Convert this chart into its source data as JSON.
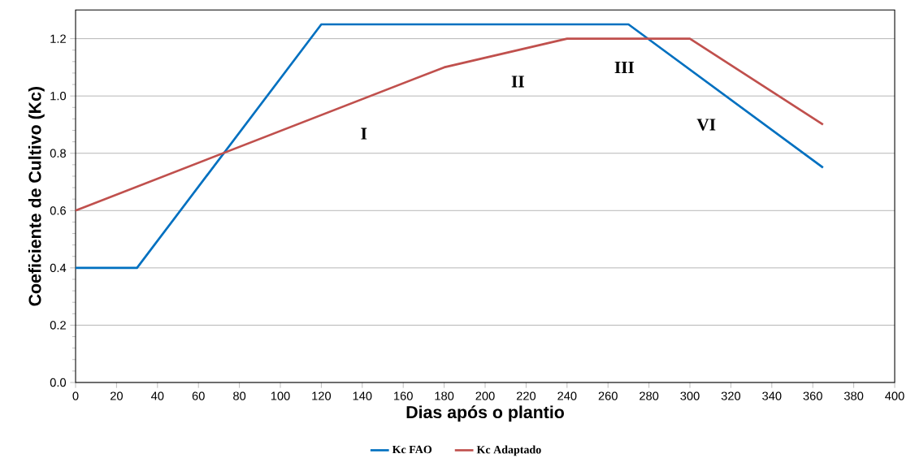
{
  "chart_data": {
    "type": "line",
    "xlabel": "Dias após o plantio",
    "ylabel": "Coeficiente de Cultivo (Kc)",
    "series": [
      {
        "name": "Kc FAO",
        "color": "#0070c0",
        "x": [
          0,
          30,
          120,
          270,
          365
        ],
        "values": [
          0.4,
          0.4,
          1.25,
          1.25,
          0.75
        ]
      },
      {
        "name": "Kc Adaptado",
        "color": "#c0504d",
        "x": [
          0,
          180,
          240,
          300,
          365
        ],
        "values": [
          0.6,
          1.1,
          1.2,
          1.2,
          0.9
        ]
      }
    ],
    "xlim": [
      0,
      400
    ],
    "xticks": [
      0,
      20,
      40,
      60,
      80,
      100,
      120,
      140,
      160,
      180,
      200,
      220,
      240,
      260,
      280,
      300,
      320,
      340,
      360,
      380,
      400
    ],
    "ylim": [
      0,
      1.3
    ],
    "yticks": [
      {
        "value": 0,
        "label": "0.0"
      },
      0.2,
      0.4,
      0.6,
      0.8,
      {
        "value": 1,
        "label": "1.0"
      },
      1.2
    ],
    "annotations": [
      "I",
      "II",
      "III",
      "VI"
    ],
    "grid": "y",
    "legend": "bottom",
    "marker": "none",
    "line_style": "solid"
  }
}
